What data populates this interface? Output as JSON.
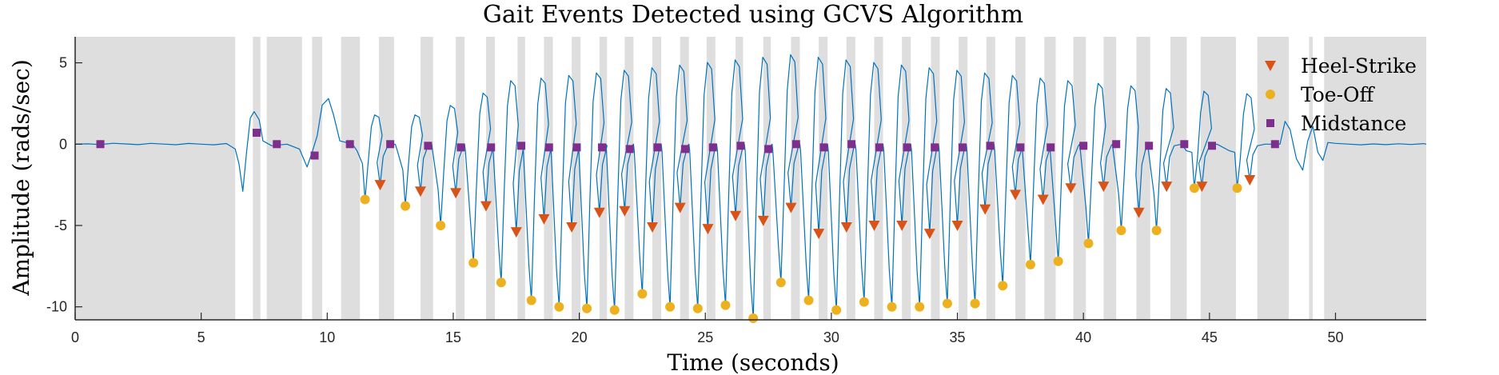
{
  "chart_data": {
    "type": "line",
    "title": "Gait Events Detected using GCVS Algorithm",
    "xlabel": "Time (seconds)",
    "ylabel": "Amplitude (rads/sec)",
    "xlim": [
      0,
      53.6
    ],
    "ylim": [
      -10.8,
      6.6
    ],
    "xticks": [
      0,
      5,
      10,
      15,
      20,
      25,
      30,
      35,
      40,
      45,
      50
    ],
    "yticks": [
      5,
      0,
      -5,
      -10
    ],
    "grid": false,
    "legend_position": "top-right",
    "signal_color": "#0072BD",
    "shade_color": "#dedede",
    "shaded_intervals": [
      [
        0,
        6.35
      ],
      [
        7.05,
        7.35
      ],
      [
        7.6,
        9.0
      ],
      [
        9.4,
        9.8
      ],
      [
        10.55,
        11.3
      ],
      [
        12.05,
        12.65
      ],
      [
        13.7,
        14.2
      ],
      [
        15.1,
        15.45
      ],
      [
        16.3,
        16.65
      ],
      [
        17.55,
        17.85
      ],
      [
        18.6,
        18.95
      ],
      [
        19.7,
        20.05
      ],
      [
        20.8,
        21.1
      ],
      [
        21.8,
        22.15
      ],
      [
        22.9,
        23.25
      ],
      [
        24.0,
        24.35
      ],
      [
        25.05,
        25.4
      ],
      [
        26.2,
        26.5
      ],
      [
        27.3,
        27.6
      ],
      [
        28.4,
        28.75
      ],
      [
        29.5,
        29.85
      ],
      [
        30.6,
        30.95
      ],
      [
        31.7,
        32.05
      ],
      [
        32.8,
        33.15
      ],
      [
        33.95,
        34.3
      ],
      [
        35.05,
        35.4
      ],
      [
        36.15,
        36.5
      ],
      [
        37.3,
        37.7
      ],
      [
        38.45,
        38.9
      ],
      [
        39.6,
        40.1
      ],
      [
        40.8,
        41.3
      ],
      [
        42.1,
        42.65
      ],
      [
        43.45,
        44.1
      ],
      [
        44.65,
        46.05
      ],
      [
        46.9,
        48.15
      ],
      [
        48.95,
        49.1
      ],
      [
        49.55,
        53.6
      ]
    ],
    "series": [
      {
        "name": "Heel-Strike",
        "color": "#D95319",
        "marker": "triangle-down",
        "x": [
          12.1,
          13.7,
          15.1,
          16.3,
          17.5,
          18.6,
          19.7,
          20.8,
          21.8,
          22.9,
          24.0,
          25.1,
          26.2,
          27.3,
          28.4,
          29.5,
          30.6,
          31.7,
          32.8,
          33.9,
          35.0,
          36.1,
          37.3,
          38.4,
          39.5,
          40.8,
          42.2,
          43.3,
          44.7,
          46.6
        ],
        "y": [
          -2.5,
          -2.9,
          -3.0,
          -3.8,
          -5.4,
          -4.6,
          -5.1,
          -4.2,
          -4.1,
          -5.1,
          -3.9,
          -5.2,
          -4.4,
          -4.7,
          -3.9,
          -5.5,
          -5.1,
          -5.0,
          -5.0,
          -5.5,
          -5.0,
          -4.0,
          -3.1,
          -3.4,
          -2.7,
          -2.6,
          -4.2,
          -2.6,
          -2.6,
          -2.2
        ]
      },
      {
        "name": "Toe-Off",
        "color": "#EDB120",
        "marker": "circle",
        "x": [
          11.5,
          13.1,
          14.5,
          15.8,
          16.9,
          18.1,
          19.2,
          20.3,
          21.4,
          22.5,
          23.6,
          24.7,
          25.8,
          26.9,
          28.0,
          29.1,
          30.2,
          31.3,
          32.4,
          33.5,
          34.6,
          35.7,
          36.8,
          37.9,
          39.0,
          40.2,
          41.5,
          42.9,
          44.4,
          46.1
        ],
        "y": [
          -3.4,
          -3.8,
          -5.0,
          -7.3,
          -8.5,
          -9.6,
          -10.0,
          -10.1,
          -10.2,
          -9.2,
          -10.0,
          -10.1,
          -9.9,
          -10.7,
          -8.5,
          -9.6,
          -10.2,
          -9.7,
          -10.0,
          -10.0,
          -9.8,
          -9.8,
          -8.7,
          -7.4,
          -7.2,
          -6.1,
          -5.3,
          -5.3,
          -2.7,
          -2.7
        ]
      },
      {
        "name": "Midstance",
        "color": "#7E2F8E",
        "marker": "square",
        "x": [
          1.0,
          7.2,
          8.0,
          9.5,
          10.9,
          12.5,
          14.0,
          15.3,
          16.5,
          17.7,
          18.8,
          19.9,
          20.9,
          22.0,
          23.1,
          24.2,
          25.3,
          26.4,
          27.5,
          28.6,
          29.7,
          30.8,
          31.9,
          33.0,
          34.1,
          35.2,
          36.3,
          37.5,
          38.7,
          40.0,
          41.3,
          42.6,
          44.0,
          45.1,
          47.6
        ],
        "y": [
          0.0,
          0.7,
          0.0,
          -0.7,
          0.0,
          0.0,
          -0.1,
          -0.2,
          -0.2,
          -0.1,
          -0.2,
          -0.2,
          -0.2,
          -0.3,
          -0.2,
          -0.3,
          -0.2,
          -0.1,
          -0.3,
          0.0,
          -0.2,
          0.0,
          -0.2,
          -0.2,
          -0.2,
          -0.2,
          -0.1,
          -0.2,
          -0.2,
          -0.1,
          0.0,
          -0.1,
          0.0,
          -0.1,
          0.0
        ]
      }
    ]
  }
}
